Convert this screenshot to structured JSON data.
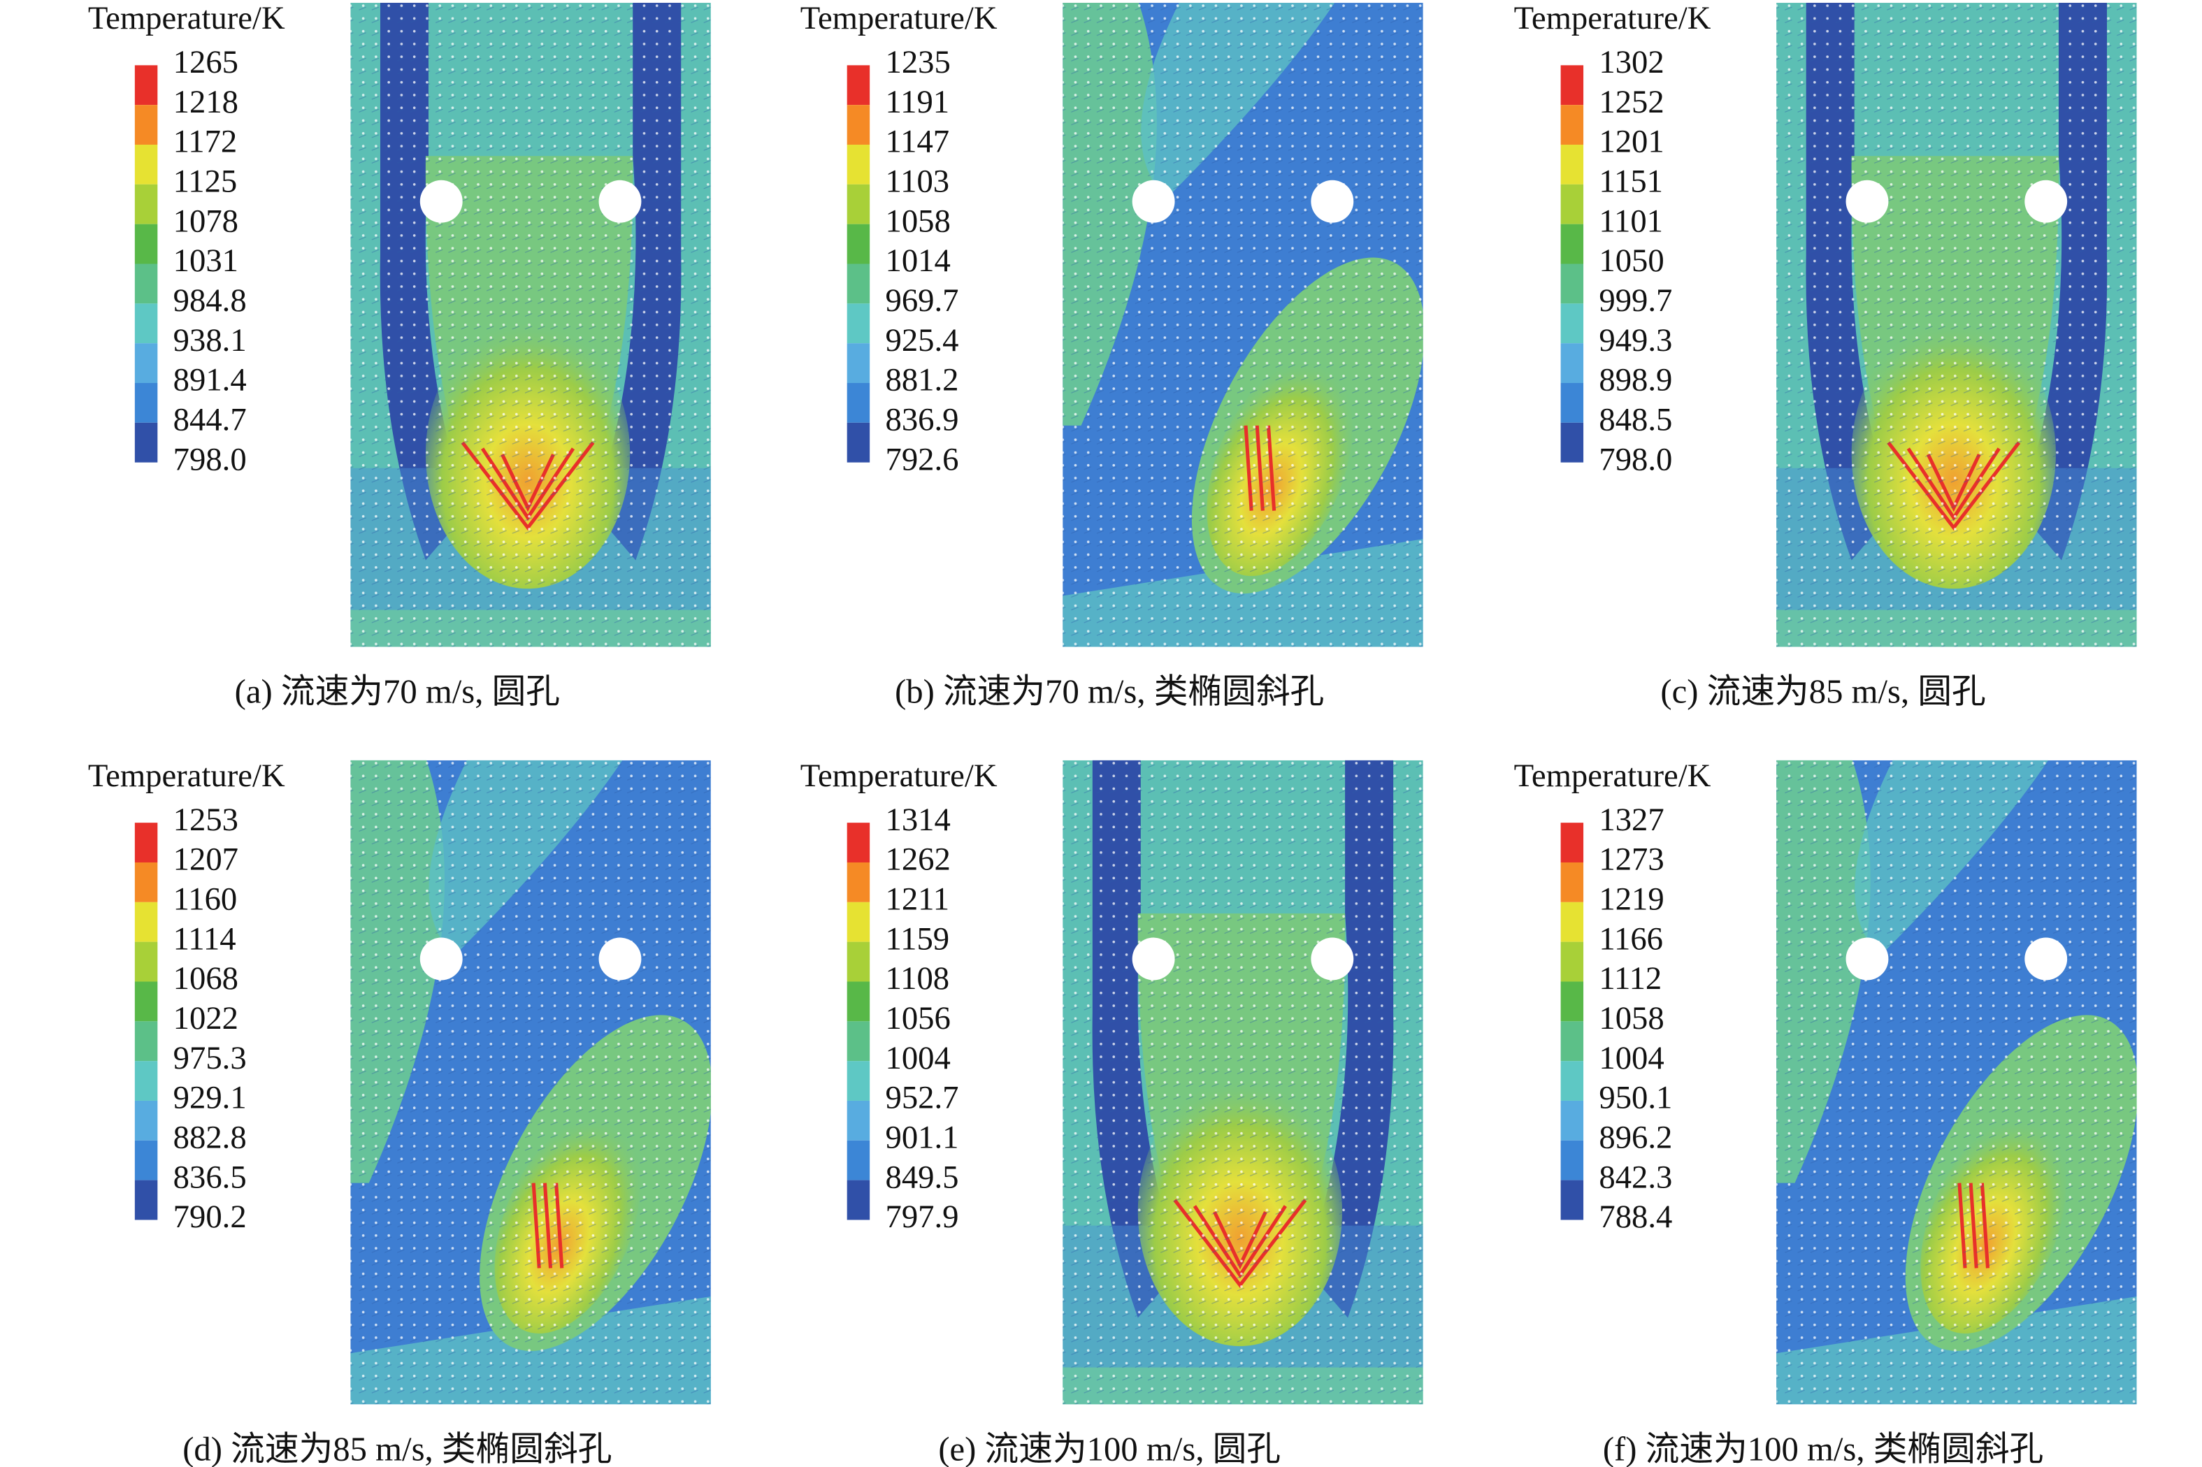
{
  "panels": [
    {
      "legend_title": "Temperature/K",
      "levels": [
        "1265",
        "1218",
        "1172",
        "1125",
        "1078",
        "1031",
        "984.8",
        "938.1",
        "891.4",
        "844.7",
        "798.0"
      ],
      "caption": "(a) 流速为70 m/s, 圆孔"
    },
    {
      "legend_title": "Temperature/K",
      "levels": [
        "1235",
        "1191",
        "1147",
        "1103",
        "1058",
        "1014",
        "969.7",
        "925.4",
        "881.2",
        "836.9",
        "792.6"
      ],
      "caption": "(b) 流速为70 m/s, 类椭圆斜孔"
    },
    {
      "legend_title": "Temperature/K",
      "levels": [
        "1302",
        "1252",
        "1201",
        "1151",
        "1101",
        "1050",
        "999.7",
        "949.3",
        "898.9",
        "848.5",
        "798.0"
      ],
      "caption": "(c) 流速为85 m/s, 圆孔"
    },
    {
      "legend_title": "Temperature/K",
      "levels": [
        "1253",
        "1207",
        "1160",
        "1114",
        "1068",
        "1022",
        "975.3",
        "929.1",
        "882.8",
        "836.5",
        "790.2"
      ],
      "caption": "(d) 流速为85 m/s, 类椭圆斜孔"
    },
    {
      "legend_title": "Temperature/K",
      "levels": [
        "1314",
        "1262",
        "1211",
        "1159",
        "1108",
        "1056",
        "1004",
        "952.7",
        "901.1",
        "849.5",
        "797.9"
      ],
      "caption": "(e) 流速为100 m/s, 圆孔"
    },
    {
      "legend_title": "Temperature/K",
      "levels": [
        "1327",
        "1273",
        "1219",
        "1166",
        "1112",
        "1058",
        "1004",
        "950.1",
        "896.2",
        "842.3",
        "788.4"
      ],
      "caption": "(f) 流速为100 m/s, 类椭圆斜孔"
    }
  ]
}
